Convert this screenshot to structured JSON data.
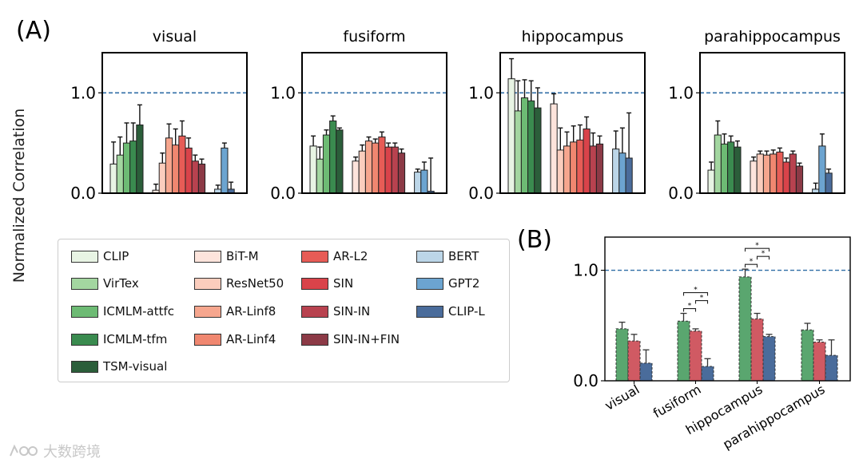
{
  "figure": {
    "panel_a_label": "(A)",
    "panel_b_label": "(B)",
    "ylabel": "Normalized Correlation"
  },
  "legend": [
    {
      "name": "CLIP",
      "color": "#e8f4e4"
    },
    {
      "name": "VirTex",
      "color": "#a3d6a0"
    },
    {
      "name": "ICMLM-attfc",
      "color": "#6dbb74"
    },
    {
      "name": "ICMLM-tfm",
      "color": "#3a8b4f"
    },
    {
      "name": "TSM-visual",
      "color": "#2b5e3a"
    },
    {
      "name": "BiT-M",
      "color": "#fde4dc"
    },
    {
      "name": "ResNet50",
      "color": "#fbcdbd"
    },
    {
      "name": "AR-Linf8",
      "color": "#f6a68e"
    },
    {
      "name": "AR-Linf4",
      "color": "#f08770"
    },
    {
      "name": "AR-L2",
      "color": "#e75c56"
    },
    {
      "name": "SIN",
      "color": "#d9434a"
    },
    {
      "name": "SIN-IN",
      "color": "#b8424f"
    },
    {
      "name": "SIN-IN+FIN",
      "color": "#8c3a46"
    },
    {
      "name": "BERT",
      "color": "#bcd6e8"
    },
    {
      "name": "GPT2",
      "color": "#6ca4d0"
    },
    {
      "name": "CLIP-L",
      "color": "#4a6c9b"
    }
  ],
  "chart_data": [
    {
      "type": "bar",
      "panel": "A",
      "yticks": [
        "0.0",
        "1.0"
      ],
      "ylim": [
        0,
        1.4
      ],
      "reference_line": 1.0,
      "subplots": [
        {
          "title": "visual",
          "groups": [
            {
              "values": [
                0.29,
                0.38,
                0.5,
                0.52,
                0.68
              ],
              "errors": [
                0.22,
                0.18,
                0.2,
                0.18,
                0.2
              ]
            },
            {
              "values": [
                0.03,
                0.3,
                0.55,
                0.48,
                0.57,
                0.45,
                0.32,
                0.29
              ],
              "errors": [
                0.06,
                0.1,
                0.14,
                0.16,
                0.15,
                0.1,
                0.06,
                0.05
              ]
            },
            {
              "values": [
                0.04,
                0.45,
                0.04
              ],
              "errors": [
                0.04,
                0.05,
                0.07
              ]
            }
          ]
        },
        {
          "title": "fusiform",
          "groups": [
            {
              "values": [
                0.47,
                0.34,
                0.58,
                0.72,
                0.63
              ],
              "errors": [
                0.1,
                0.12,
                0.05,
                0.05,
                0.02
              ]
            },
            {
              "values": [
                0.32,
                0.42,
                0.52,
                0.5,
                0.56,
                0.46,
                0.46,
                0.4
              ],
              "errors": [
                0.04,
                0.06,
                0.04,
                0.04,
                0.05,
                0.04,
                0.04,
                0.04
              ]
            },
            {
              "values": [
                0.21,
                0.23,
                0.02
              ],
              "errors": [
                0.03,
                0.08,
                0.33
              ]
            }
          ]
        },
        {
          "title": "hippocampus",
          "groups": [
            {
              "values": [
                1.14,
                0.82,
                0.95,
                0.92,
                0.85
              ],
              "errors": [
                0.2,
                0.3,
                0.18,
                0.2,
                0.2
              ]
            },
            {
              "values": [
                0.89,
                0.43,
                0.47,
                0.51,
                0.53,
                0.64,
                0.47,
                0.49
              ],
              "errors": [
                0.1,
                0.22,
                0.14,
                0.16,
                0.15,
                0.12,
                0.13,
                0.08
              ]
            },
            {
              "values": [
                0.44,
                0.4,
                0.35
              ],
              "errors": [
                0.18,
                0.25,
                0.45
              ]
            }
          ]
        },
        {
          "title": "parahippocampus",
          "groups": [
            {
              "values": [
                0.23,
                0.58,
                0.49,
                0.51,
                0.46
              ],
              "errors": [
                0.08,
                0.14,
                0.1,
                0.06,
                0.06
              ]
            },
            {
              "values": [
                0.32,
                0.39,
                0.38,
                0.39,
                0.41,
                0.31,
                0.39,
                0.27
              ],
              "errors": [
                0.04,
                0.03,
                0.04,
                0.04,
                0.04,
                0.04,
                0.03,
                0.03
              ]
            },
            {
              "values": [
                0.04,
                0.47,
                0.2
              ],
              "errors": [
                0.06,
                0.12,
                0.04
              ]
            }
          ]
        }
      ]
    },
    {
      "type": "bar",
      "panel": "B",
      "categories": [
        "visual",
        "fusiform",
        "hippocampus",
        "parahippocampus"
      ],
      "yticks": [
        "0.0",
        "1.0"
      ],
      "ylim": [
        0,
        1.3
      ],
      "reference_line": 1.0,
      "series_colors": [
        "#5aa66f",
        "#d05a63",
        "#4a6c9b"
      ],
      "values": [
        [
          0.47,
          0.36,
          0.16
        ],
        [
          0.54,
          0.45,
          0.13
        ],
        [
          0.94,
          0.56,
          0.4
        ],
        [
          0.46,
          0.35,
          0.23
        ]
      ],
      "errors": [
        [
          0.06,
          0.06,
          0.12
        ],
        [
          0.07,
          0.02,
          0.07
        ],
        [
          0.07,
          0.05,
          0.02
        ],
        [
          0.06,
          0.02,
          0.14
        ]
      ],
      "significance": [
        {
          "category": 1,
          "from": 0,
          "to": 1,
          "level": 0,
          "label": "*"
        },
        {
          "category": 1,
          "from": 1,
          "to": 2,
          "level": 1,
          "label": "*"
        },
        {
          "category": 1,
          "from": 0,
          "to": 2,
          "level": 2,
          "label": "*"
        },
        {
          "category": 2,
          "from": 0,
          "to": 1,
          "level": 0,
          "label": "*"
        },
        {
          "category": 2,
          "from": 1,
          "to": 2,
          "level": 1,
          "label": "*"
        },
        {
          "category": 2,
          "from": 0,
          "to": 2,
          "level": 2,
          "label": "*"
        }
      ]
    }
  ],
  "watermark": {
    "text": "大数跨境",
    "icon": "brand-logo-icon"
  }
}
